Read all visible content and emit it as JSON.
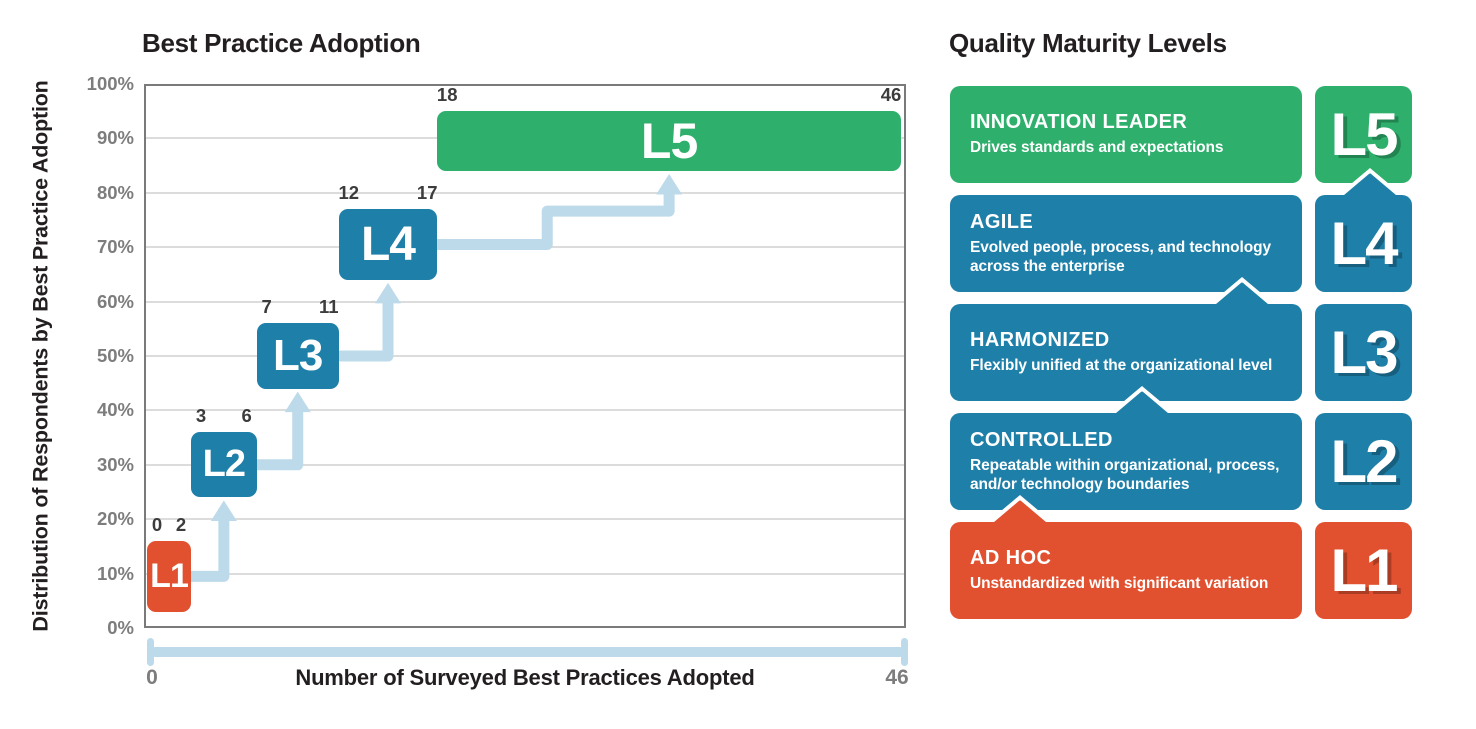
{
  "chart_data": {
    "type": "bar",
    "title": "Best Practice Adoption",
    "xlabel": "Number of Surveyed Best Practices Adopted",
    "ylabel": "Distribution of Respondents by Best Practice Adoption",
    "xlim": [
      0,
      46
    ],
    "ylim": [
      0,
      100
    ],
    "x_tick_labels": [
      "0",
      "46"
    ],
    "y_tick_step": 10,
    "y_unit": "%",
    "grid": true,
    "orientation": "floating range boxes connected by staircase arrows from L1 up to L5",
    "series": [
      {
        "label": "L1",
        "practices_range": [
          0,
          2
        ],
        "respondents_pct_range": [
          3,
          16
        ],
        "color": "orange"
      },
      {
        "label": "L2",
        "practices_range": [
          3,
          6
        ],
        "respondents_pct_range": [
          24,
          36
        ],
        "color": "blue"
      },
      {
        "label": "L3",
        "practices_range": [
          7,
          11
        ],
        "respondents_pct_range": [
          44,
          56
        ],
        "color": "blue"
      },
      {
        "label": "L4",
        "practices_range": [
          12,
          17
        ],
        "respondents_pct_range": [
          64,
          77
        ],
        "color": "blue"
      },
      {
        "label": "L5",
        "practices_range": [
          18,
          46
        ],
        "respondents_pct_range": [
          84,
          95
        ],
        "color": "green"
      }
    ]
  },
  "panel": {
    "title": "Quality Maturity Levels",
    "levels": [
      {
        "badge": "L5",
        "name": "INNOVATION LEADER",
        "description": "Drives standards and expectations",
        "color": "green"
      },
      {
        "badge": "L4",
        "name": "AGILE",
        "description": "Evolved people, process, and technology across the enterprise",
        "color": "blue"
      },
      {
        "badge": "L3",
        "name": "HARMONIZED",
        "description": "Flexibly unified at the organizational level",
        "color": "blue"
      },
      {
        "badge": "L2",
        "name": "CONTROLLED",
        "description": "Repeatable within organizational, process, and/or technology boundaries",
        "color": "blue"
      },
      {
        "badge": "L1",
        "name": "AD HOC",
        "description": "Unstandardized with significant variation",
        "color": "orange"
      }
    ]
  },
  "colors": {
    "green": "#2eb06c",
    "blue": "#1e7fa9",
    "orange": "#e2512f",
    "light_blue": "#bddaea",
    "grid": "#dcdcdc",
    "plot_border": "#7a7a7a",
    "axis_gray": "#7d7d7d",
    "label_dark": "#3c3c3c",
    "ink": "#231f20",
    "background": "#ffffff"
  }
}
